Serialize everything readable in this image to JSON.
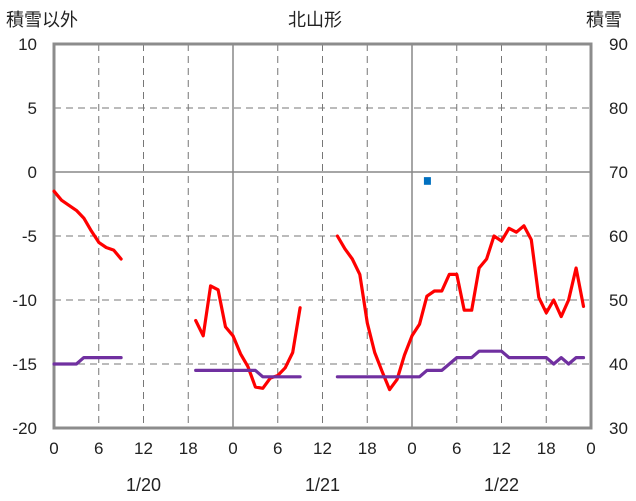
{
  "header": {
    "left_label": "積雪以外",
    "title": "北山形",
    "right_label": "積雪"
  },
  "chart_data": {
    "type": "line",
    "title": "北山形",
    "y_left": {
      "label": "積雪以外",
      "range": [
        -20,
        10
      ],
      "ticks": [
        10,
        5,
        0,
        -5,
        -10,
        -15,
        -20
      ]
    },
    "y_right": {
      "label": "積雪",
      "range": [
        30,
        90
      ],
      "ticks": [
        90,
        80,
        70,
        60,
        50,
        40,
        30
      ]
    },
    "x": {
      "unit": "hours",
      "range": [
        0,
        72
      ],
      "tick_hours": [
        0,
        6,
        12,
        18,
        24,
        30,
        36,
        42,
        48,
        54,
        60,
        66,
        72
      ],
      "tick_labels": [
        "0",
        "6",
        "12",
        "18",
        "0",
        "6",
        "12",
        "18",
        "0",
        "6",
        "12",
        "18",
        "0"
      ],
      "date_labels": [
        {
          "text": "1/20",
          "hour": 12
        },
        {
          "text": "1/21",
          "hour": 36
        },
        {
          "text": "1/22",
          "hour": 60
        }
      ]
    },
    "grid": true,
    "series": [
      {
        "color": "#ff0000",
        "axis": "left",
        "segments": [
          [
            [
              0,
              -1.5
            ],
            [
              1,
              -2.2
            ],
            [
              2,
              -2.6
            ],
            [
              3,
              -3.0
            ],
            [
              4,
              -3.6
            ],
            [
              5,
              -4.6
            ],
            [
              6,
              -5.5
            ],
            [
              7,
              -5.9
            ],
            [
              8,
              -6.1
            ],
            [
              9,
              -6.8
            ]
          ],
          [
            [
              19,
              -11.6
            ],
            [
              20,
              -12.8
            ],
            [
              21,
              -8.9
            ],
            [
              22,
              -9.2
            ],
            [
              23,
              -12.1
            ],
            [
              24,
              -12.8
            ],
            [
              25,
              -14.2
            ],
            [
              26,
              -15.2
            ],
            [
              27,
              -16.8
            ],
            [
              28,
              -16.9
            ],
            [
              29,
              -16.1
            ],
            [
              30,
              -15.9
            ],
            [
              31,
              -15.3
            ],
            [
              32,
              -14.1
            ],
            [
              33,
              -10.6
            ]
          ],
          [
            [
              38,
              -5.0
            ],
            [
              39,
              -6.0
            ],
            [
              40,
              -6.8
            ],
            [
              41,
              -8.0
            ],
            [
              42,
              -11.8
            ],
            [
              43,
              -14.1
            ],
            [
              44,
              -15.6
            ],
            [
              45,
              -17.0
            ],
            [
              46,
              -16.2
            ],
            [
              47,
              -14.3
            ],
            [
              48,
              -12.8
            ],
            [
              49,
              -11.9
            ],
            [
              50,
              -9.7
            ],
            [
              51,
              -9.3
            ],
            [
              52,
              -9.3
            ],
            [
              53,
              -8.0
            ],
            [
              54,
              -8.0
            ],
            [
              55,
              -10.8
            ],
            [
              56,
              -10.8
            ],
            [
              57,
              -7.5
            ],
            [
              58,
              -6.8
            ],
            [
              59,
              -5.0
            ],
            [
              60,
              -5.4
            ],
            [
              61,
              -4.4
            ],
            [
              62,
              -4.7
            ],
            [
              63,
              -4.2
            ],
            [
              64,
              -5.3
            ],
            [
              65,
              -9.8
            ],
            [
              66,
              -11.0
            ],
            [
              67,
              -10.0
            ],
            [
              68,
              -11.3
            ],
            [
              69,
              -10.0
            ],
            [
              70,
              -7.5
            ],
            [
              71,
              -10.5
            ]
          ]
        ]
      },
      {
        "color": "#7030a0",
        "axis": "left",
        "segments": [
          [
            [
              0,
              -15.0
            ],
            [
              3,
              -15.0
            ],
            [
              4,
              -14.5
            ],
            [
              9,
              -14.5
            ]
          ],
          [
            [
              19,
              -15.5
            ],
            [
              27,
              -15.5
            ],
            [
              28,
              -16.0
            ],
            [
              33,
              -16.0
            ]
          ],
          [
            [
              38,
              -16.0
            ],
            [
              49,
              -16.0
            ],
            [
              50,
              -15.5
            ],
            [
              52,
              -15.5
            ],
            [
              54,
              -14.5
            ],
            [
              56,
              -14.5
            ],
            [
              57,
              -14.0
            ],
            [
              60,
              -14.0
            ],
            [
              61,
              -14.5
            ],
            [
              66,
              -14.5
            ],
            [
              67,
              -15.0
            ],
            [
              68,
              -14.5
            ],
            [
              69,
              -15.0
            ],
            [
              70,
              -14.5
            ],
            [
              71,
              -14.5
            ]
          ]
        ]
      }
    ],
    "bars": [
      {
        "color": "#0070c0",
        "axis": "left",
        "hour": 50,
        "from": -0.4,
        "to": -1.0
      }
    ]
  }
}
